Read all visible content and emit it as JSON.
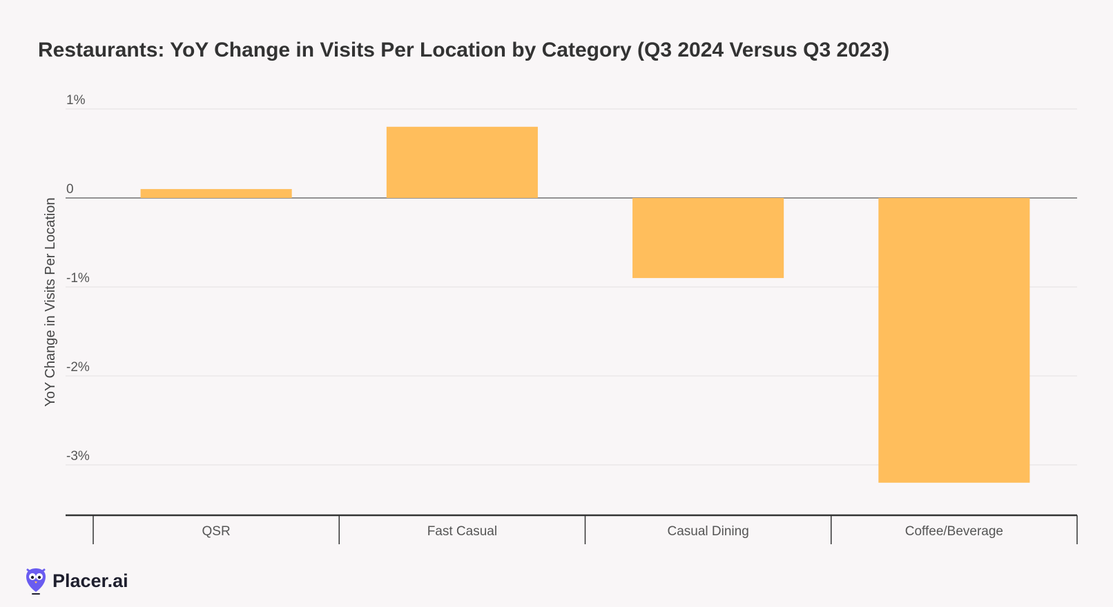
{
  "chart_data": {
    "type": "bar",
    "title": "Restaurants: YoY Change in Visits Per Location by Category (Q3 2024 Versus Q3 2023)",
    "xlabel": "",
    "ylabel": "YoY Change in Visits Per Location",
    "categories": [
      "QSR",
      "Fast Casual",
      "Casual Dining",
      "Coffee/Beverage"
    ],
    "values": [
      0.1,
      0.8,
      -0.9,
      -3.2
    ],
    "ylim": [
      -3.6,
      1.1
    ],
    "yticks": [
      1,
      0,
      -1,
      -2,
      -3
    ],
    "ytick_labels": [
      "1%",
      "0",
      "-1%",
      "-2%",
      "-3%"
    ],
    "bar_color": "#ffbe5c",
    "grid": true
  },
  "brand": {
    "name": "Placer.ai",
    "logo_icon": "owl-icon",
    "logo_color": "#6a5cf0"
  }
}
